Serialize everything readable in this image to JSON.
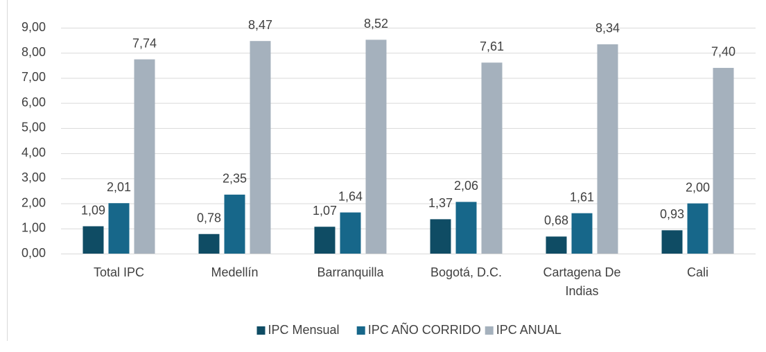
{
  "chart_data": {
    "type": "bar",
    "categories": [
      "Total IPC",
      "Medellín",
      "Barranquilla",
      "Bogotá, D.C.",
      "Cartagena De Indias",
      "Cali"
    ],
    "series": [
      {
        "name": "IPC Mensual",
        "color": "#0f4c64",
        "values": [
          1.09,
          0.78,
          1.07,
          1.37,
          0.68,
          0.93
        ],
        "value_labels": [
          "1,09",
          "0,78",
          "1,07",
          "1,37",
          "0,68",
          "0,93"
        ]
      },
      {
        "name": "IPC AÑO CORRIDO",
        "color": "#17678a",
        "values": [
          2.01,
          2.35,
          1.64,
          2.06,
          1.61,
          2.0
        ],
        "value_labels": [
          "2,01",
          "2,35",
          "1,64",
          "2,06",
          "1,61",
          "2,00"
        ]
      },
      {
        "name": "IPC ANUAL",
        "color": "#a5b1bd",
        "values": [
          7.74,
          8.47,
          8.52,
          7.61,
          8.34,
          7.4
        ],
        "value_labels": [
          "7,74",
          "8,47",
          "8,52",
          "7,61",
          "8,34",
          "7,40"
        ]
      }
    ],
    "ylim": [
      0,
      9
    ],
    "yticks": [
      {
        "value": 0,
        "label": "0,00"
      },
      {
        "value": 1,
        "label": "1,00"
      },
      {
        "value": 2,
        "label": "2,00"
      },
      {
        "value": 3,
        "label": "3,00"
      },
      {
        "value": 4,
        "label": "4,00"
      },
      {
        "value": 5,
        "label": "5,00"
      },
      {
        "value": 6,
        "label": "6,00"
      },
      {
        "value": 7,
        "label": "7,00"
      },
      {
        "value": 8,
        "label": "8,00"
      },
      {
        "value": 9,
        "label": "9,00"
      }
    ],
    "grid": true,
    "legend": "bottom"
  }
}
